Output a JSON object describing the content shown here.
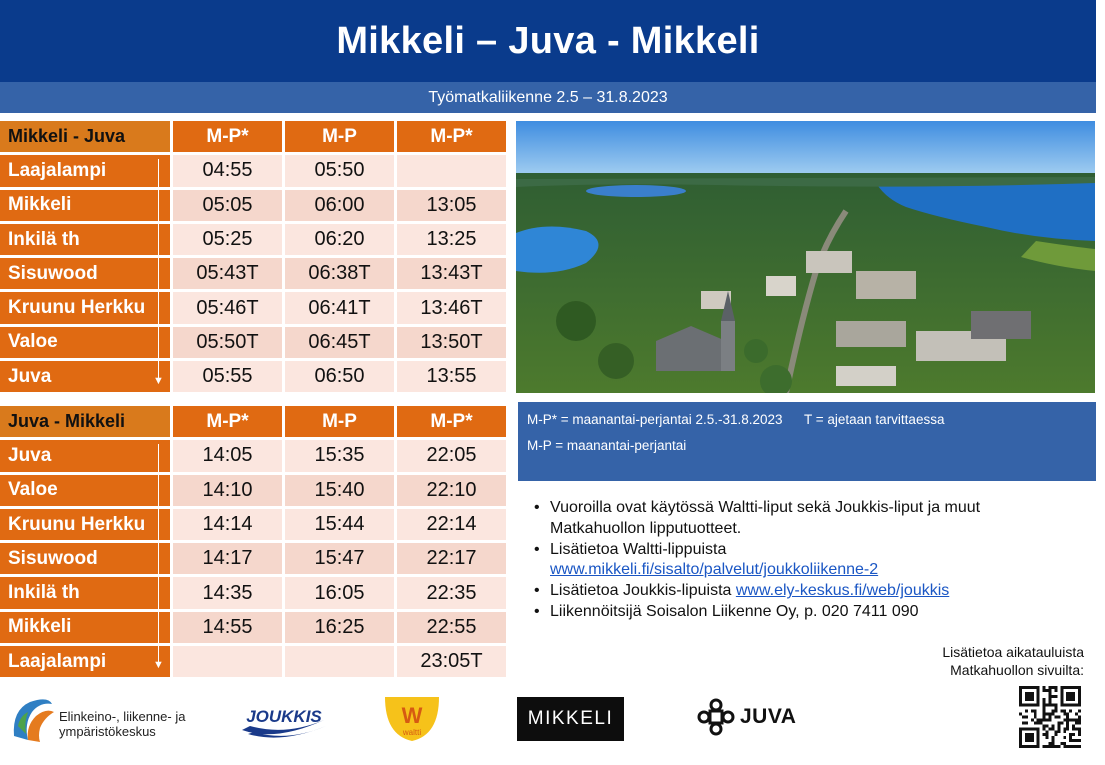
{
  "header": {
    "title": "Mikkeli – Juva - Mikkeli",
    "subtitle": "Työmatkaliikenne 2.5 – 31.8.2023"
  },
  "timetable_outbound": {
    "title": "Mikkeli - Juva",
    "columns": [
      "M-P*",
      "M-P",
      "M-P*"
    ],
    "rows": [
      {
        "stop": "Laajalampi",
        "times": [
          "04:55",
          "05:50",
          ""
        ]
      },
      {
        "stop": "Mikkeli",
        "times": [
          "05:05",
          "06:00",
          "13:05"
        ]
      },
      {
        "stop": "Inkilä th",
        "times": [
          "05:25",
          "06:20",
          "13:25"
        ]
      },
      {
        "stop": "Sisuwood",
        "times": [
          "05:43T",
          "06:38T",
          "13:43T"
        ]
      },
      {
        "stop": "Kruunu Herkku",
        "times": [
          "05:46T",
          "06:41T",
          "13:46T"
        ]
      },
      {
        "stop": "Valoe",
        "times": [
          "05:50T",
          "06:45T",
          "13:50T"
        ]
      },
      {
        "stop": "Juva",
        "times": [
          "05:55",
          "06:50",
          "13:55"
        ]
      }
    ]
  },
  "timetable_return": {
    "title": "Juva - Mikkeli",
    "columns": [
      "M-P*",
      "M-P",
      "M-P*"
    ],
    "rows": [
      {
        "stop": "Juva",
        "times": [
          "14:05",
          "15:35",
          "22:05"
        ]
      },
      {
        "stop": "Valoe",
        "times": [
          "14:10",
          "15:40",
          "22:10"
        ]
      },
      {
        "stop": "Kruunu Herkku",
        "times": [
          "14:14",
          "15:44",
          "22:14"
        ]
      },
      {
        "stop": "Sisuwood",
        "times": [
          "14:17",
          "15:47",
          "22:17"
        ]
      },
      {
        "stop": "Inkilä th",
        "times": [
          "14:35",
          "16:05",
          "22:35"
        ]
      },
      {
        "stop": "Mikkeli",
        "times": [
          "14:55",
          "16:25",
          "22:55"
        ]
      },
      {
        "stop": "Laajalampi",
        "times": [
          "",
          "",
          "23:05T"
        ]
      }
    ]
  },
  "legend": {
    "line1": "M-P* = maanantai-perjantai 2.5.-31.8.2023",
    "line1b": "T = ajetaan tarvittaessa",
    "line2": "M-P = maanantai-perjantai"
  },
  "notes": {
    "item1": "Vuoroilla ovat käytössä Waltti-liput sekä Joukkis-liput ja muut Matkahuollon lipputuotteet.",
    "item2_text": "Lisätietoa Waltti-lippuista",
    "item2_link": "www.mikkeli.fi/sisalto/palvelut/joukkoliikenne-2",
    "item3_text": "Lisätietoa Joukkis-lipuista",
    "item3_link": "www.ely-keskus.fi/web/joukkis",
    "item4": "Liikennöitsijä Soisalon Liikenne Oy, p. 020 7411 090"
  },
  "more_info": {
    "line1": "Lisätietoa aikatauluista",
    "line2": "Matkahuollon sivuilta:"
  },
  "logos": {
    "ely_line1": "Elinkeino-, liikenne- ja",
    "ely_line2": "ympäristökeskus",
    "joukkis": "JOUKKIS",
    "waltti_letter": "W",
    "waltti_word": "waltti",
    "mikkeli": "MIKKELI",
    "juva": "JUVA"
  },
  "colors": {
    "header": "#0a3b8c",
    "subheader": "#3563a8",
    "accent_orange": "#e06a12",
    "link": "#1a56c4"
  }
}
